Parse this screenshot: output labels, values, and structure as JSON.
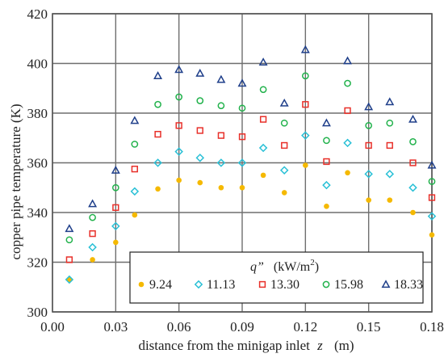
{
  "chart_data": {
    "type": "scatter",
    "xlabel": "distance from the minigap inlet",
    "xlabel_var": "z",
    "xlabel_unit": "(m)",
    "ylabel": "copper pipe temperature (K)",
    "xlim": [
      0.0,
      0.18
    ],
    "ylim": [
      300,
      420
    ],
    "xticks": [
      "0.00",
      "0.03",
      "0.06",
      "0.09",
      "0.12",
      "0.15",
      "0.18"
    ],
    "yticks": [
      "300",
      "320",
      "340",
      "360",
      "380",
      "400",
      "420"
    ],
    "grid": true,
    "legend": {
      "title_symbol": "q”",
      "title_unit": "(kW/m",
      "title_unit_sup": "2",
      "title_unit_close": ")",
      "placement": "bottom-right"
    },
    "series": [
      {
        "name": "9.24",
        "marker": "circle-filled",
        "color": "#f5b900",
        "x": [
          0.008,
          0.019,
          0.03,
          0.039,
          0.05,
          0.06,
          0.07,
          0.08,
          0.09,
          0.1,
          0.11,
          0.12,
          0.13,
          0.14,
          0.15,
          0.16,
          0.171,
          0.18
        ],
        "y": [
          313,
          321,
          328,
          339,
          349.5,
          353,
          352,
          350,
          350,
          355,
          348,
          359,
          342.5,
          356,
          345,
          345,
          340,
          331
        ]
      },
      {
        "name": "11.13",
        "marker": "diamond",
        "color": "#29c0d6",
        "x": [
          0.008,
          0.019,
          0.03,
          0.039,
          0.05,
          0.06,
          0.07,
          0.08,
          0.09,
          0.1,
          0.11,
          0.12,
          0.13,
          0.14,
          0.15,
          0.16,
          0.171,
          0.18
        ],
        "y": [
          313,
          326,
          334.5,
          348.5,
          360,
          364.5,
          362,
          360,
          360,
          366,
          357,
          371,
          351,
          368,
          355.5,
          355.5,
          350,
          338.5
        ]
      },
      {
        "name": "13.30",
        "marker": "square",
        "color": "#e8302a",
        "x": [
          0.008,
          0.019,
          0.03,
          0.039,
          0.05,
          0.06,
          0.07,
          0.08,
          0.09,
          0.1,
          0.11,
          0.12,
          0.13,
          0.14,
          0.15,
          0.16,
          0.171,
          0.18
        ],
        "y": [
          321,
          331.5,
          342,
          357.5,
          371.5,
          375,
          373,
          371,
          370.5,
          377.5,
          367,
          383.5,
          360.5,
          381,
          367,
          367,
          360,
          346
        ]
      },
      {
        "name": "15.98",
        "marker": "circle-open",
        "color": "#22b24c",
        "x": [
          0.008,
          0.019,
          0.03,
          0.039,
          0.05,
          0.06,
          0.07,
          0.08,
          0.09,
          0.1,
          0.11,
          0.12,
          0.13,
          0.14,
          0.15,
          0.16,
          0.171,
          0.18
        ],
        "y": [
          329,
          338,
          350,
          367.5,
          383.5,
          386.5,
          385,
          383,
          382,
          389.5,
          376,
          395,
          369,
          392,
          375,
          376,
          368.5,
          352.5
        ]
      },
      {
        "name": "18.33",
        "marker": "triangle",
        "color": "#1f3f8a",
        "x": [
          0.008,
          0.019,
          0.03,
          0.039,
          0.05,
          0.06,
          0.07,
          0.08,
          0.09,
          0.1,
          0.11,
          0.12,
          0.13,
          0.14,
          0.15,
          0.16,
          0.171,
          0.18
        ],
        "y": [
          333.5,
          343.5,
          357,
          377,
          395,
          397.5,
          396,
          393.5,
          392,
          400.5,
          384,
          405.5,
          376,
          401,
          382.5,
          384.5,
          377.5,
          359
        ]
      }
    ]
  }
}
